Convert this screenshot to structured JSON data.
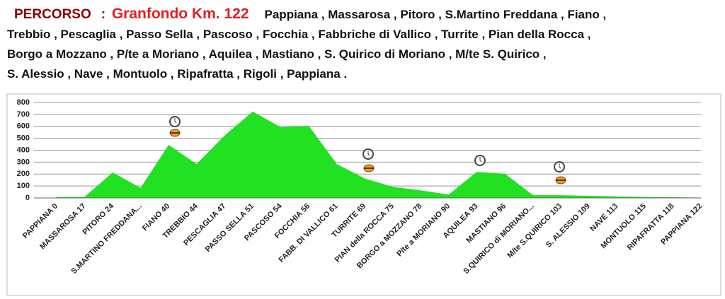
{
  "header": {
    "label": "PERCORSO",
    "separator": ":",
    "event": "Granfondo Km. 122",
    "route_lines": [
      "Pappiana , Massarosa , Pitoro , S.Martino Freddana , Fiano ,",
      "Trebbio , Pescaglia , Passo Sella , Pascoso , Focchia , Fabbriche di Vallico , Turrite , Pian della Rocca ,",
      "Borgo a Mozzano , P/te a Moriano , Aquilea , Mastiano , S. Quirico di Moriano , M/te S. Quirico ,",
      "S. Alessio , Nave , Montuolo , Ripafratta , Rigoli , Pappiana ."
    ]
  },
  "chart_data": {
    "type": "area",
    "color": "#22e022",
    "grid": true,
    "categories": [
      "PAPPIANA 0",
      "MASSAROSA 17",
      "PITORO 24",
      "S.MARTINO FREDDANA...",
      "FIANO 40",
      "TREBBIO 44",
      "PESCAGLIA 47",
      "PASSO SELLA 51",
      "PASCOSO 54",
      "FOCCHIA 56",
      "FABB. DI VALLICO 61",
      "TURRITE 69",
      "PIAN della ROCCA 75",
      "BORGO a MOZZANO 78",
      "P/te a MORIANO 90",
      "AQUILEA 93",
      "MASTIANO 96",
      "S.QUIRICO di MORIANO...",
      "M/te S.QUIRICO 103",
      "S. ALESSIO 109",
      "NAVE 113",
      "MONTUOLO 115",
      "RIPAFRATTA 118",
      "PAPPIANA 122"
    ],
    "values": [
      5,
      5,
      210,
      80,
      440,
      280,
      520,
      720,
      590,
      600,
      280,
      160,
      90,
      60,
      25,
      215,
      200,
      20,
      20,
      15,
      10,
      5,
      3,
      0
    ],
    "ylim": [
      0,
      800
    ],
    "yticks": [
      0,
      100,
      200,
      300,
      400,
      500,
      600,
      700,
      800
    ]
  }
}
